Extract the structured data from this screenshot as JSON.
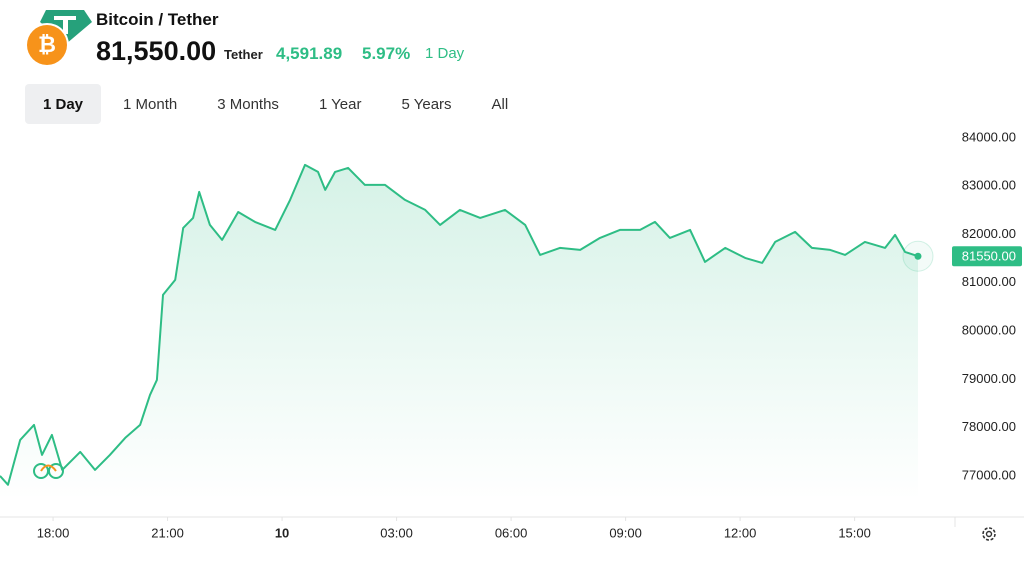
{
  "header": {
    "pair": "Bitcoin / Tether",
    "price": "81,550.00",
    "quote": "Tether",
    "change": "4,591.89",
    "change_pct": "5.97%",
    "period": "1 Day"
  },
  "ranges": {
    "items": [
      "1 Day",
      "1 Month",
      "3 Months",
      "1 Year",
      "5 Years",
      "All"
    ],
    "selected": 0
  },
  "chart_data": {
    "type": "line",
    "color": "#2ebd85",
    "x": [
      16.61,
      16.82,
      17.14,
      17.5,
      17.71,
      17.97,
      18.24,
      18.71,
      19.1,
      19.49,
      19.89,
      20.28,
      20.54,
      20.72,
      20.88,
      21.2,
      21.41,
      21.67,
      21.83,
      22.11,
      22.43,
      22.85,
      23.29,
      23.82,
      24.21,
      24.6,
      24.94,
      25.13,
      25.39,
      25.73,
      26.17,
      26.7,
      27.22,
      27.75,
      28.14,
      28.66,
      29.19,
      29.84,
      30.37,
      30.76,
      31.28,
      31.81,
      32.33,
      32.85,
      33.38,
      33.77,
      34.16,
      34.69,
      35.08,
      35.61,
      36.13,
      36.58,
      36.92,
      37.44,
      37.88,
      38.36,
      38.75,
      39.27,
      39.8,
      40.06,
      40.32,
      40.66
    ],
    "values": [
      77000,
      76814,
      77746,
      78056,
      77435,
      77849,
      77124,
      77497,
      77124,
      77435,
      77787,
      78056,
      78678,
      78988,
      80749,
      81059,
      82136,
      82343,
      82882,
      82198,
      81888,
      82467,
      82260,
      82095,
      82716,
      83441,
      83296,
      82923,
      83296,
      83379,
      83027,
      83027,
      82716,
      82509,
      82198,
      82509,
      82343,
      82509,
      82198,
      81577,
      81722,
      81680,
      81929,
      82095,
      82095,
      82260,
      81929,
      82095,
      81432,
      81722,
      81515,
      81411,
      81846,
      82053,
      81722,
      81680,
      81577,
      81846,
      81722,
      81991,
      81639,
      81550
    ],
    "xlim": [
      16.61,
      41.63
    ],
    "xticks": [
      {
        "value": 18,
        "label": "18:00"
      },
      {
        "value": 21,
        "label": "21:00"
      },
      {
        "value": 24,
        "label": "10"
      },
      {
        "value": 27,
        "label": "03:00"
      },
      {
        "value": 30,
        "label": "06:00"
      },
      {
        "value": 33,
        "label": "09:00"
      },
      {
        "value": 36,
        "label": "12:00"
      },
      {
        "value": 39,
        "label": "15:00"
      }
    ],
    "ylim": [
      76500,
      84200
    ],
    "yticks": [
      {
        "value": 77000,
        "label": "77000.00"
      },
      {
        "value": 78000,
        "label": "78000.00"
      },
      {
        "value": 79000,
        "label": "79000.00"
      },
      {
        "value": 80000,
        "label": "80000.00"
      },
      {
        "value": 81000,
        "label": "81000.00"
      },
      {
        "value": 82000,
        "label": "82000.00"
      },
      {
        "value": 83000,
        "label": "83000.00"
      },
      {
        "value": 84000,
        "label": "84000.00"
      }
    ],
    "price_tag": {
      "value": 81550,
      "label": "81550.00"
    }
  }
}
